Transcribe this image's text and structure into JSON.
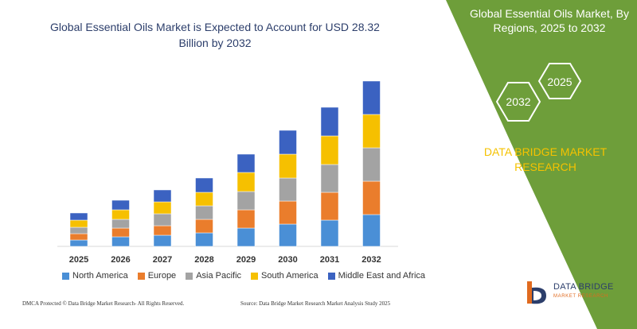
{
  "chart_title": "Global Essential Oils Market is Expected to Account for USD 28.32 Billion by 2032",
  "panel": {
    "title": "Global Essential Oils Market, By Regions, 2025 to 2032",
    "hex_left": "2032",
    "hex_right": "2025",
    "brand": "DATA BRIDGE MARKET RESEARCH",
    "bg_color": "#6e9e3a"
  },
  "footer": {
    "dmca": "DMCA Protected © Data Bridge Market Research- All Rights Reserved.",
    "source": "Source: Data Bridge Market Research Market Analysis Study 2025"
  },
  "logo": {
    "name": "DATA BRIDGE",
    "tagline": "MARKET RESEARCH",
    "icon": "data-bridge-logo"
  },
  "chart_data": {
    "type": "bar",
    "stacked": true,
    "categories": [
      "2025",
      "2026",
      "2027",
      "2028",
      "2029",
      "2030",
      "2031",
      "2032"
    ],
    "series": [
      {
        "name": "North America",
        "color": "#4a8fd6",
        "values": [
          8,
          12,
          14,
          17,
          23,
          28,
          33,
          40
        ]
      },
      {
        "name": "Europe",
        "color": "#ea7d2c",
        "values": [
          8,
          11,
          12,
          17,
          23,
          29,
          35,
          42
        ]
      },
      {
        "name": "Asia Pacific",
        "color": "#a3a3a3",
        "values": [
          8,
          11,
          15,
          17,
          23,
          29,
          35,
          42
        ]
      },
      {
        "name": "South America",
        "color": "#f6c000",
        "values": [
          9,
          12,
          15,
          17,
          24,
          30,
          36,
          42
        ]
      },
      {
        "name": "Middle East and Africa",
        "color": "#3b62c1",
        "values": [
          9,
          12,
          15,
          18,
          23,
          30,
          36,
          42
        ]
      }
    ],
    "xlabel": "",
    "ylabel": "",
    "legend_position": "bottom",
    "grid": false
  }
}
